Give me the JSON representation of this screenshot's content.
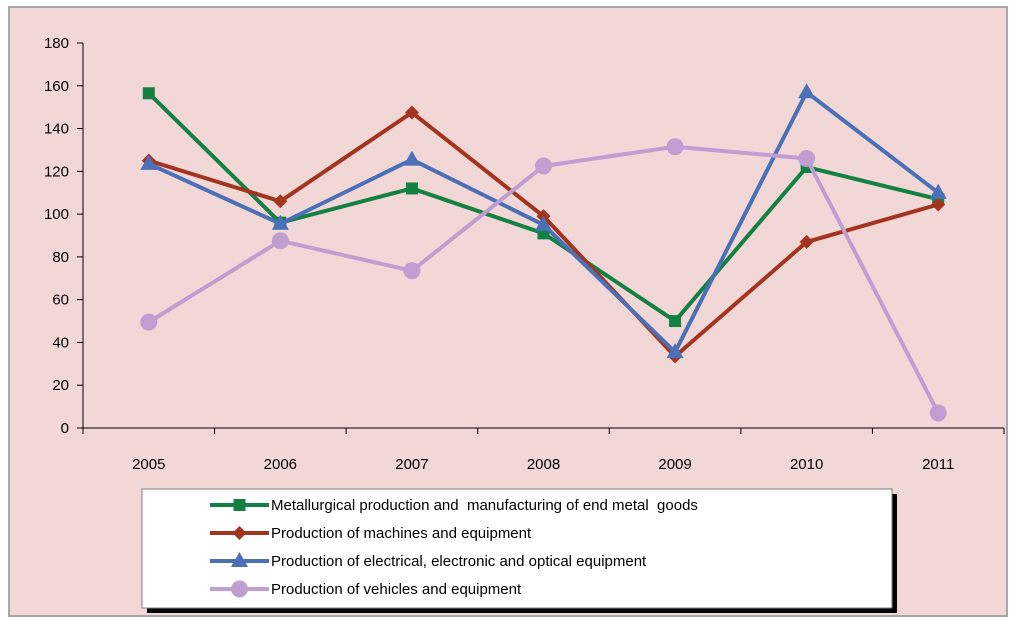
{
  "chart_data": {
    "type": "line",
    "categories": [
      "2005",
      "2006",
      "2007",
      "2008",
      "2009",
      "2010",
      "2011"
    ],
    "ylim": [
      0,
      180
    ],
    "yticks": [
      0,
      20,
      40,
      60,
      80,
      100,
      120,
      140,
      160,
      180
    ],
    "grid": false,
    "legend_position": "bottom",
    "series": [
      {
        "name": "Metallurgical production and  manufacturing of end metal  goods",
        "color": "#138142",
        "marker": "square",
        "values": [
          156.5,
          96,
          112,
          91,
          50,
          122,
          107
        ]
      },
      {
        "name": "Production of machines and equipment",
        "color": "#a3341e",
        "marker": "diamond",
        "values": [
          125,
          106,
          147.5,
          99,
          33.5,
          87,
          104.5
        ]
      },
      {
        "name": "Production of electrical, electronic and optical equipment",
        "color": "#4a70b7",
        "marker": "triangle",
        "values": [
          123.5,
          95.5,
          125.5,
          95,
          35.5,
          157,
          110
        ]
      },
      {
        "name": "Production of vehicles and equipment",
        "color": "#bf9fd1",
        "marker": "circle",
        "values": [
          49.5,
          87.5,
          73.5,
          122.5,
          131.5,
          126,
          7
        ]
      }
    ]
  },
  "colors": {
    "background": "#f2d7d7",
    "axis": "#000000",
    "frame": "#a6a6a6",
    "legend_bg": "#ffffff"
  }
}
